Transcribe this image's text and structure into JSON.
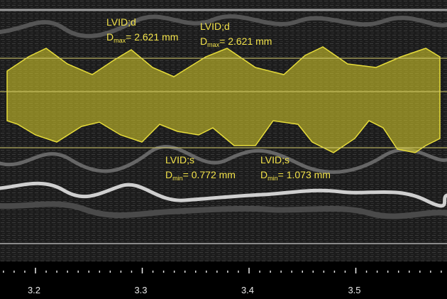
{
  "measurements": [
    {
      "label": "LVID;d",
      "symbol": "D",
      "subscript": "max",
      "value_text": "= 2.621 mm"
    },
    {
      "label": "LVID;d",
      "symbol": "D",
      "subscript": "max",
      "value_text": "= 2.621 mm"
    },
    {
      "label": "LVID;s",
      "symbol": "D",
      "subscript": "min",
      "value_text": "= 0.772 mm"
    },
    {
      "label": "LVID;s",
      "symbol": "D",
      "subscript": "min",
      "value_text": "= 1.073 mm"
    }
  ],
  "time_axis": {
    "ticks": [
      3.2,
      3.3,
      3.4,
      3.5
    ]
  }
}
